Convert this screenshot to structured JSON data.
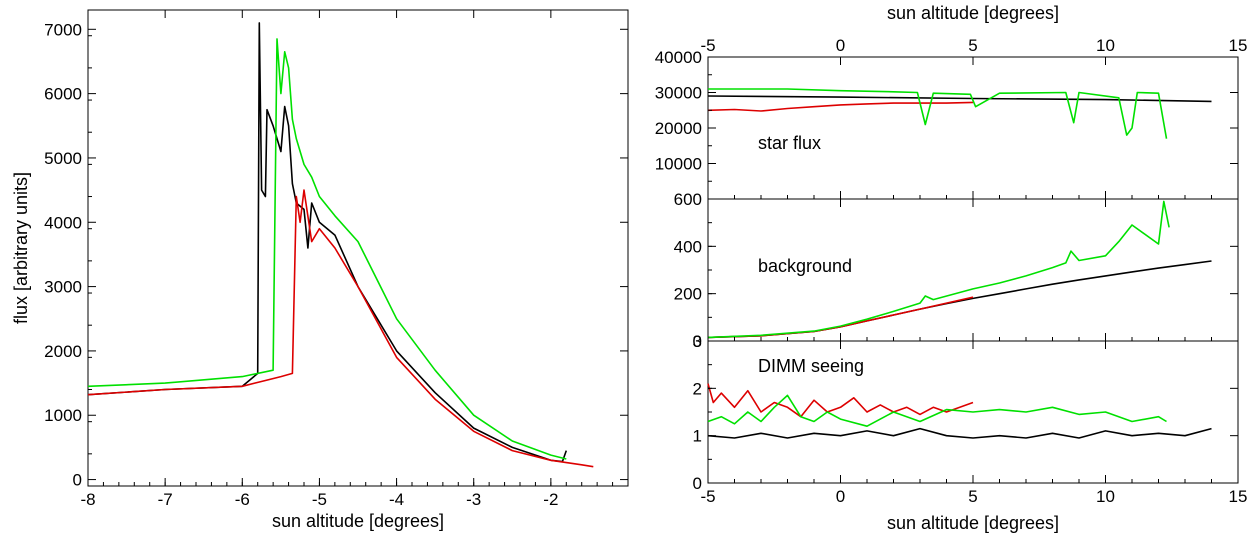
{
  "colors": {
    "black": "#000000",
    "red": "#dd0000",
    "green": "#00e000"
  },
  "chart_data": [
    {
      "type": "line",
      "xlabel": "sun altitude [degrees]",
      "ylabel": "flux [arbitrary units]",
      "xlim": [
        -8,
        -1
      ],
      "ylim": [
        -100,
        7300
      ],
      "xticks": [
        -8,
        -7,
        -6,
        -5,
        -4,
        -3,
        -2
      ],
      "xtick_labels": [
        "-8",
        "-7",
        "-6",
        "-5",
        "-4",
        "-3",
        "-2"
      ],
      "yticks": [
        0,
        1000,
        2000,
        3000,
        4000,
        5000,
        6000,
        7000
      ],
      "ytick_labels": [
        "0",
        "1000",
        "2000",
        "3000",
        "4000",
        "5000",
        "6000",
        "7000"
      ],
      "series": [
        {
          "color": "black",
          "x": [
            -8.0,
            -7.0,
            -6.0,
            -5.8,
            -5.78,
            -5.75,
            -5.7,
            -5.68,
            -5.6,
            -5.55,
            -5.5,
            -5.45,
            -5.4,
            -5.35,
            -5.3,
            -5.2,
            -5.15,
            -5.1,
            -5.0,
            -4.8,
            -4.5,
            -4.0,
            -3.5,
            -3.0,
            -2.5,
            -2.0,
            -1.85,
            -1.8
          ],
          "y": [
            1320,
            1400,
            1450,
            1650,
            7100,
            4500,
            4400,
            5750,
            5500,
            5300,
            5100,
            5800,
            5500,
            4600,
            4300,
            4200,
            3600,
            4300,
            4000,
            3800,
            3000,
            2000,
            1350,
            800,
            500,
            300,
            280,
            450
          ]
        },
        {
          "color": "red",
          "x": [
            -8.0,
            -7.0,
            -6.0,
            -5.5,
            -5.35,
            -5.3,
            -5.25,
            -5.2,
            -5.1,
            -5.0,
            -4.8,
            -4.5,
            -4.0,
            -3.5,
            -3.0,
            -2.5,
            -2.0,
            -1.6,
            -1.45
          ],
          "y": [
            1320,
            1400,
            1450,
            1600,
            1650,
            4400,
            4000,
            4500,
            3700,
            3900,
            3600,
            3000,
            1900,
            1250,
            750,
            450,
            300,
            230,
            200
          ]
        },
        {
          "color": "green",
          "x": [
            -8.0,
            -7.0,
            -6.0,
            -5.6,
            -5.55,
            -5.5,
            -5.45,
            -5.4,
            -5.35,
            -5.3,
            -5.2,
            -5.1,
            -5.0,
            -4.8,
            -4.5,
            -4.0,
            -3.5,
            -3.0,
            -2.5,
            -2.0,
            -1.8
          ],
          "y": [
            1450,
            1500,
            1600,
            1700,
            6850,
            6000,
            6650,
            6400,
            5600,
            5300,
            4900,
            4700,
            4400,
            4100,
            3700,
            2500,
            1700,
            1000,
            600,
            380,
            320
          ]
        }
      ]
    },
    {
      "type": "line",
      "title": "star flux",
      "xlabel": "sun altitude [degrees]",
      "xlim": [
        -5,
        15
      ],
      "ylim": [
        0,
        40000
      ],
      "xticks": [
        -5,
        0,
        5,
        10,
        15
      ],
      "xtick_labels": [
        "-5",
        "0",
        "5",
        "10",
        "15"
      ],
      "yticks": [
        10000,
        20000,
        30000,
        40000
      ],
      "ytick_labels": [
        "10000",
        "20000",
        "30000",
        "40000"
      ],
      "series": [
        {
          "color": "black",
          "x": [
            -5,
            0,
            5,
            10,
            14
          ],
          "y": [
            29000,
            28700,
            28300,
            28000,
            27500
          ]
        },
        {
          "color": "red",
          "x": [
            -5,
            -4,
            -3,
            -2,
            -1,
            0,
            1,
            2,
            3,
            4,
            5
          ],
          "y": [
            25000,
            25200,
            24800,
            25500,
            26000,
            26500,
            26800,
            27000,
            27000,
            27000,
            27200
          ]
        },
        {
          "color": "green",
          "x": [
            -5,
            -2,
            0,
            2,
            2.9,
            3.2,
            3.5,
            4.9,
            5.1,
            6,
            8.5,
            8.8,
            9,
            10.5,
            10.8,
            11,
            11.2,
            12,
            12.3
          ],
          "y": [
            31000,
            31000,
            30500,
            30200,
            30000,
            21000,
            29800,
            29500,
            26000,
            29800,
            30000,
            21500,
            30000,
            28500,
            18000,
            20000,
            30000,
            29800,
            17000
          ]
        }
      ]
    },
    {
      "type": "line",
      "title": "background",
      "xlim": [
        -5,
        15
      ],
      "ylim": [
        0,
        600
      ],
      "yticks": [
        0,
        200,
        400,
        600
      ],
      "ytick_labels": [
        "0",
        "200",
        "400",
        "600"
      ],
      "series": [
        {
          "color": "black",
          "x": [
            -5,
            -3,
            -1,
            0,
            1,
            2,
            3,
            4,
            5,
            6,
            7,
            8,
            9,
            10,
            11,
            12,
            13,
            14
          ],
          "y": [
            15,
            22,
            40,
            60,
            85,
            110,
            135,
            158,
            180,
            200,
            220,
            240,
            258,
            275,
            292,
            308,
            323,
            338
          ]
        },
        {
          "color": "red",
          "x": [
            -5,
            -3,
            -1,
            0,
            1,
            2,
            3,
            4,
            5
          ],
          "y": [
            15,
            22,
            40,
            60,
            85,
            110,
            135,
            160,
            185
          ]
        },
        {
          "color": "green",
          "x": [
            -5,
            -3,
            -1,
            0,
            1,
            2,
            3,
            3.2,
            3.5,
            5,
            6,
            7,
            8,
            8.5,
            8.7,
            9,
            10,
            10.5,
            11,
            12,
            12.2,
            12.4
          ],
          "y": [
            15,
            24,
            42,
            63,
            92,
            125,
            160,
            190,
            175,
            220,
            245,
            275,
            310,
            330,
            380,
            340,
            360,
            420,
            490,
            410,
            590,
            480
          ]
        }
      ]
    },
    {
      "type": "line",
      "title": "DIMM seeing",
      "xlabel": "sun altitude [degrees]",
      "xlim": [
        -5,
        15
      ],
      "ylim": [
        0,
        3
      ],
      "xticks": [
        -5,
        0,
        5,
        10,
        15
      ],
      "xtick_labels": [
        "-5",
        "0",
        "5",
        "10",
        "15"
      ],
      "yticks": [
        0,
        1,
        2,
        3
      ],
      "ytick_labels": [
        "0",
        "1",
        "2",
        "3"
      ],
      "series": [
        {
          "color": "black",
          "x": [
            -5,
            -4,
            -3,
            -2,
            -1,
            0,
            1,
            2,
            3,
            4,
            5,
            6,
            7,
            8,
            9,
            10,
            11,
            12,
            13,
            14
          ],
          "y": [
            1.0,
            0.95,
            1.05,
            0.95,
            1.05,
            1.0,
            1.1,
            1.0,
            1.15,
            1.0,
            0.95,
            1.0,
            0.95,
            1.05,
            0.95,
            1.1,
            1.0,
            1.05,
            1.0,
            1.15
          ]
        },
        {
          "color": "red",
          "x": [
            -5,
            -4.8,
            -4.5,
            -4,
            -3.5,
            -3,
            -2.5,
            -2,
            -1.5,
            -1,
            -0.5,
            0,
            0.5,
            1,
            1.5,
            2,
            2.5,
            3,
            3.5,
            4,
            4.5,
            5
          ],
          "y": [
            2.1,
            1.7,
            1.9,
            1.6,
            1.95,
            1.5,
            1.7,
            1.6,
            1.4,
            1.75,
            1.5,
            1.6,
            1.8,
            1.5,
            1.65,
            1.5,
            1.6,
            1.45,
            1.6,
            1.5,
            1.6,
            1.7
          ]
        },
        {
          "color": "green",
          "x": [
            -5,
            -4.5,
            -4,
            -3.5,
            -3,
            -2.5,
            -2,
            -1.5,
            -1,
            -0.5,
            0,
            1,
            2,
            3,
            4,
            5,
            6,
            7,
            8,
            9,
            10,
            11,
            12,
            12.3
          ],
          "y": [
            1.3,
            1.4,
            1.25,
            1.5,
            1.3,
            1.6,
            1.85,
            1.4,
            1.3,
            1.5,
            1.35,
            1.2,
            1.5,
            1.3,
            1.55,
            1.5,
            1.55,
            1.5,
            1.6,
            1.45,
            1.5,
            1.3,
            1.4,
            1.3
          ]
        }
      ]
    }
  ]
}
